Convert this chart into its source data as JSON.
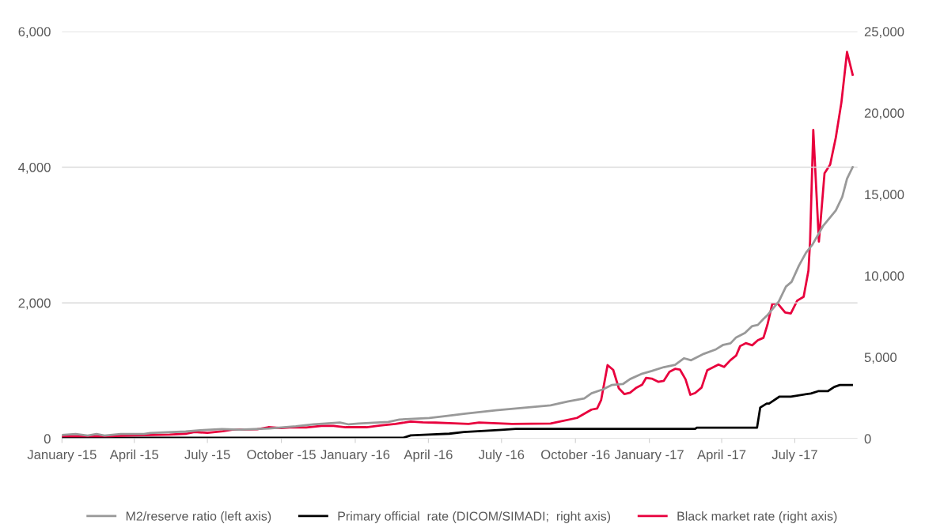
{
  "chart_data": {
    "type": "line",
    "xlim": [
      "2015-01-01",
      "2017-09-17"
    ],
    "xticks": [
      {
        "value": "2015-01",
        "label": "January -15"
      },
      {
        "value": "2015-04",
        "label": "April -15"
      },
      {
        "value": "2015-07",
        "label": "July -15"
      },
      {
        "value": "2015-10",
        "label": "October -15"
      },
      {
        "value": "2016-01",
        "label": "January -16"
      },
      {
        "value": "2016-04",
        "label": "April -16"
      },
      {
        "value": "2016-07",
        "label": "July -16"
      },
      {
        "value": "2016-10",
        "label": "October -16"
      },
      {
        "value": "2017-01",
        "label": "January -17"
      },
      {
        "value": "2017-04",
        "label": "April -17"
      },
      {
        "value": "2017-07",
        "label": "July -17"
      }
    ],
    "ylim": [
      0,
      6000
    ],
    "yticks": [
      0,
      {
        "value": 2000,
        "label": "2,000"
      },
      {
        "value": 4000,
        "label": "4,000"
      },
      {
        "value": 6000,
        "label": "6,000"
      }
    ],
    "y2lim": [
      0,
      25000
    ],
    "y2ticks": [
      0,
      {
        "value": 5000,
        "label": "5,000"
      },
      {
        "value": 10000,
        "label": "10,000"
      },
      {
        "value": 15000,
        "label": "15,000"
      },
      {
        "value": 20000,
        "label": "20,000"
      },
      {
        "value": 25000,
        "label": "25,000"
      }
    ],
    "grid": "y",
    "legend": "bottom",
    "marker": "none",
    "line_style": "solid",
    "series": [
      {
        "name": "M2/reserve ratio (left axis)",
        "color": "#999999",
        "x": [
          "2015-01-01",
          "2015-01-18",
          "2015-02-02",
          "2015-02-13",
          "2015-02-23",
          "2015-03-15",
          "2015-04-13",
          "2015-04-21",
          "2015-05-07",
          "2015-06-04",
          "2015-06-26",
          "2015-07-19",
          "2015-08-10",
          "2015-09-16",
          "2015-10-19",
          "2015-11-10",
          "2015-12-13",
          "2015-12-24",
          "2016-01-05",
          "2016-02-11",
          "2016-02-25",
          "2016-04-02",
          "2016-04-21",
          "2016-05-17",
          "2016-06-24",
          "2016-08-31",
          "2016-09-22",
          "2016-10-12",
          "2016-10-21",
          "2016-11-04",
          "2016-11-15",
          "2016-11-29",
          "2016-12-08",
          "2016-12-23",
          "2017-01-04",
          "2017-01-19",
          "2017-02-02",
          "2017-02-13",
          "2017-02-22",
          "2017-03-10",
          "2017-03-25",
          "2017-04-03",
          "2017-04-12",
          "2017-04-19",
          "2017-04-30",
          "2017-05-09",
          "2017-05-16",
          "2017-05-23",
          "2017-05-28",
          "2017-06-11",
          "2017-06-20",
          "2017-06-27",
          "2017-07-06",
          "2017-07-15",
          "2017-07-23",
          "2017-08-05",
          "2017-08-21",
          "2017-08-29",
          "2017-09-04",
          "2017-09-11"
        ],
        "values": [
          54,
          68,
          45,
          68,
          45,
          68,
          68,
          82,
          91,
          104,
          127,
          141,
          132,
          150,
          181,
          209,
          236,
          209,
          222,
          245,
          281,
          304,
          331,
          367,
          417,
          491,
          548,
          592,
          667,
          724,
          789,
          803,
          877,
          956,
          996,
          1053,
          1088,
          1184,
          1154,
          1250,
          1316,
          1382,
          1404,
          1491,
          1557,
          1658,
          1675,
          1763,
          1820,
          2019,
          2240,
          2310,
          2545,
          2740,
          2860,
          3130,
          3360,
          3560,
          3830,
          4000
        ]
      },
      {
        "name": "Primary official  rate (DICOM/SIMADI;  right axis)",
        "color": "#000000",
        "axis": "y2",
        "x": [
          "2015-01-01",
          "2016-03-01",
          "2016-03-10",
          "2016-04-01",
          "2016-04-27",
          "2016-05-15",
          "2016-06-10",
          "2016-07-01",
          "2016-07-19",
          "2017-02-27",
          "2017-03-01",
          "2017-05-15",
          "2017-05-19",
          "2017-05-27",
          "2017-05-30",
          "2017-06-12",
          "2017-06-26",
          "2017-07-21",
          "2017-07-30",
          "2017-08-11",
          "2017-08-19",
          "2017-08-26",
          "2017-09-10"
        ],
        "values": [
          50,
          50,
          200,
          250,
          300,
          400,
          480,
          540,
          600,
          600,
          670,
          670,
          1910,
          2150,
          2150,
          2580,
          2580,
          2770,
          2910,
          2910,
          3170,
          3290,
          3290
        ]
      },
      {
        "name": "Black market rate (right axis)",
        "color": "#e8003d",
        "axis": "y2",
        "x": [
          "2015-01-01",
          "2015-03-01",
          "2015-04-01",
          "2015-05-15",
          "2015-06-05",
          "2015-06-15",
          "2015-07-01",
          "2015-07-20",
          "2015-08-01",
          "2015-09-01",
          "2015-09-15",
          "2015-10-01",
          "2015-10-15",
          "2015-11-01",
          "2015-11-20",
          "2015-12-05",
          "2015-12-20",
          "2016-01-15",
          "2016-02-01",
          "2016-02-20",
          "2016-03-10",
          "2016-03-25",
          "2016-04-10",
          "2016-04-27",
          "2016-05-21",
          "2016-06-03",
          "2016-07-14",
          "2016-08-31",
          "2016-10-03",
          "2016-10-21",
          "2016-10-28",
          "2016-11-02",
          "2016-11-10",
          "2016-11-17",
          "2016-11-24",
          "2016-12-01",
          "2016-12-08",
          "2016-12-16",
          "2016-12-23",
          "2016-12-28",
          "2017-01-04",
          "2017-01-12",
          "2017-01-19",
          "2017-01-26",
          "2017-02-02",
          "2017-02-08",
          "2017-02-15",
          "2017-02-21",
          "2017-02-27",
          "2017-03-07",
          "2017-03-14",
          "2017-03-28",
          "2017-04-04",
          "2017-04-12",
          "2017-04-19",
          "2017-04-24",
          "2017-05-01",
          "2017-05-09",
          "2017-05-16",
          "2017-05-23",
          "2017-05-28",
          "2017-06-03",
          "2017-06-10",
          "2017-06-19",
          "2017-06-26",
          "2017-07-04",
          "2017-07-12",
          "2017-07-18",
          "2017-07-20",
          "2017-07-24",
          "2017-07-31",
          "2017-08-07",
          "2017-08-14",
          "2017-08-21",
          "2017-08-28",
          "2017-09-04",
          "2017-09-11"
        ],
        "values": [
          150,
          150,
          200,
          250,
          300,
          400,
          350,
          450,
          550,
          570,
          700,
          650,
          700,
          680,
          780,
          780,
          700,
          700,
          800,
          900,
          1050,
          1000,
          980,
          950,
          900,
          980,
          900,
          920,
          1270,
          1780,
          1850,
          2370,
          4510,
          4220,
          3090,
          2730,
          2820,
          3130,
          3310,
          3730,
          3680,
          3490,
          3550,
          4100,
          4280,
          4240,
          3640,
          2690,
          2800,
          3130,
          4190,
          4550,
          4400,
          4820,
          5100,
          5680,
          5860,
          5730,
          6040,
          6190,
          7000,
          8280,
          8280,
          7740,
          7680,
          8470,
          8710,
          10320,
          12100,
          18950,
          12100,
          16290,
          16820,
          18470,
          20640,
          23740,
          22340
        ]
      }
    ]
  }
}
